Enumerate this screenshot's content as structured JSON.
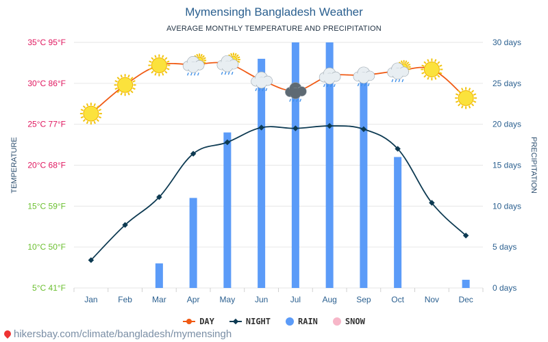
{
  "header": {
    "title": "Mymensingh Bangladesh Weather",
    "subtitle": "AVERAGE MONTHLY TEMPERATURE AND PRECIPITATION"
  },
  "legend": {
    "day": "DAY",
    "night": "NIGHT",
    "rain": "RAIN",
    "snow": "SNOW"
  },
  "footer": {
    "source": "hikersbay.com/climate/bangladesh/mymensingh"
  },
  "colors": {
    "day": "#f05a14",
    "night": "#0d3a52",
    "rain": "#5b9bf8",
    "snow": "#f7b6c8",
    "left_axis": "#e0165e",
    "left_axis_low": "#6abf2e",
    "right_axis": "#2a5f8f",
    "grid": "#e6e6e6"
  },
  "chart_data": {
    "type": "line+bar",
    "title": "Mymensingh Bangladesh Weather",
    "subtitle": "AVERAGE MONTHLY TEMPERATURE AND PRECIPITATION",
    "categories": [
      "Jan",
      "Feb",
      "Mar",
      "Apr",
      "May",
      "Jun",
      "Jul",
      "Aug",
      "Sep",
      "Oct",
      "Nov",
      "Dec"
    ],
    "left_axis": {
      "label": "TEMPERATURE",
      "ylim": [
        5,
        35
      ],
      "ticks": [
        "5°C 41°F",
        "10°C 50°F",
        "15°C 59°F",
        "20°C 68°F",
        "25°C 77°F",
        "30°C 86°F",
        "35°C 95°F"
      ]
    },
    "right_axis": {
      "label": "PRECIPITATION",
      "ylim": [
        0,
        30
      ],
      "ticks": [
        "0 days",
        "5 days",
        "10 days",
        "15 days",
        "20 days",
        "25 days",
        "30 days"
      ]
    },
    "series": [
      {
        "name": "DAY",
        "kind": "line",
        "axis": "left",
        "unit": "°C",
        "values": [
          26.3,
          29.8,
          32.2,
          32.3,
          32.4,
          30.4,
          29.1,
          30.9,
          31.0,
          31.5,
          31.7,
          28.2
        ]
      },
      {
        "name": "NIGHT",
        "kind": "line",
        "axis": "left",
        "unit": "°C",
        "values": [
          8.4,
          12.7,
          16.1,
          21.4,
          22.8,
          24.6,
          24.5,
          24.8,
          24.4,
          22.0,
          15.4,
          11.4
        ]
      },
      {
        "name": "RAIN",
        "kind": "bar",
        "axis": "right",
        "unit": "days",
        "values": [
          0,
          0,
          3,
          11,
          19,
          28,
          30,
          30,
          26,
          16,
          0,
          1
        ]
      },
      {
        "name": "SNOW",
        "kind": "bar",
        "axis": "right",
        "unit": "days",
        "values": [
          0,
          0,
          0,
          0,
          0,
          0,
          0,
          0,
          0,
          0,
          0,
          0
        ]
      }
    ],
    "weather_icons": [
      "sun",
      "sun",
      "sun",
      "sun-cloud-rain",
      "sun-cloud-rain",
      "cloud-rain",
      "dark-cloud-rain",
      "cloud-rain",
      "cloud-rain",
      "sun-cloud-rain",
      "sun",
      "sun"
    ],
    "grid": true,
    "legend_position": "bottom-center"
  }
}
